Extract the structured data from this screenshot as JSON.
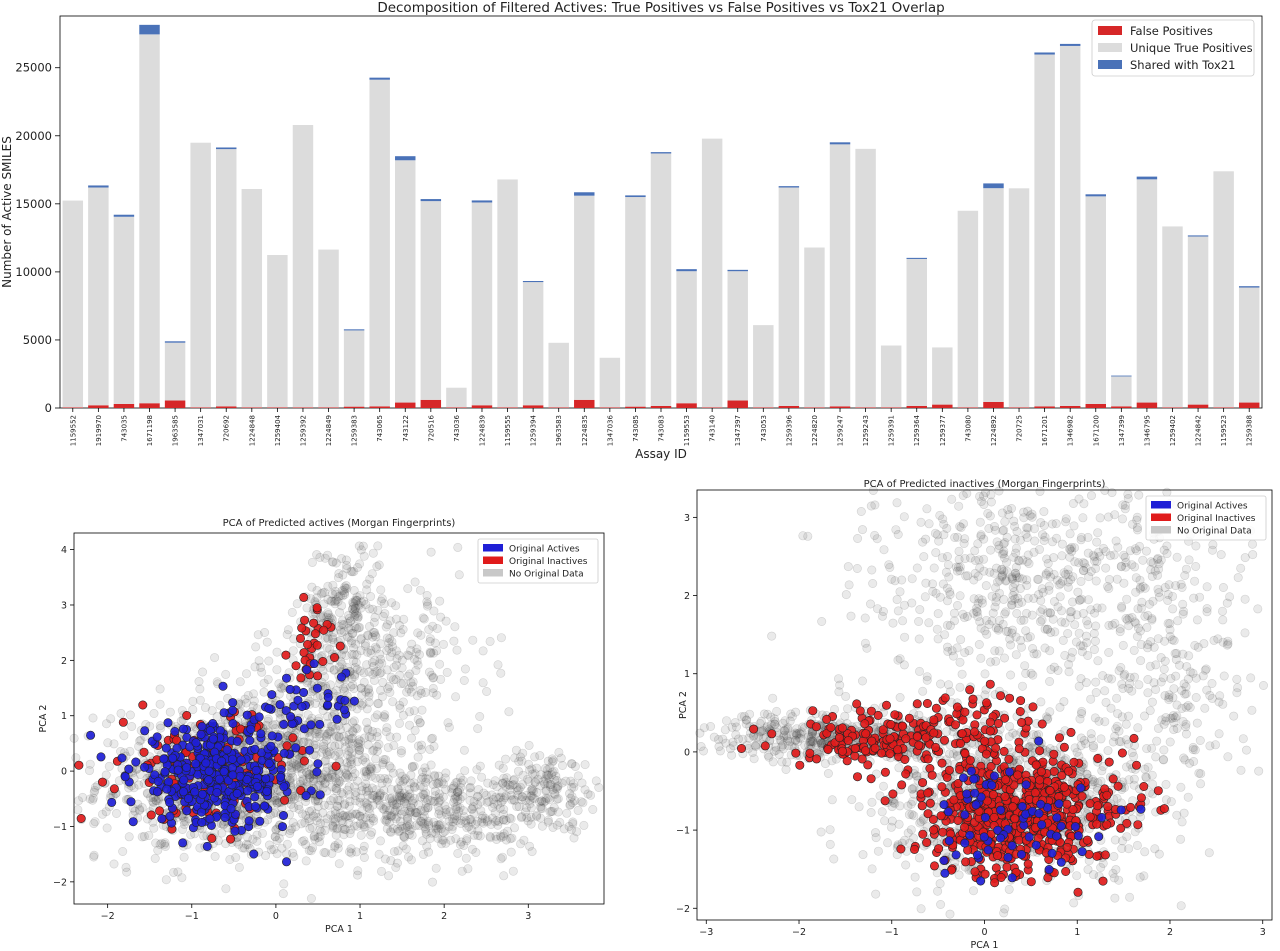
{
  "colors": {
    "false_positive": "#d62728",
    "unique_true_positive": "#dcdcdc",
    "shared_tox21": "#4a72b8",
    "original_actives": "#1f1fd6",
    "original_inactives": "#e01b1b",
    "no_original_data": "#c8c8c8",
    "background_points": "#555555"
  },
  "chart_data": [
    {
      "type": "bar",
      "stacked": true,
      "title": "Decomposition of Filtered Actives: True Positives vs False Positives vs Tox21 Overlap",
      "xlabel": "Assay ID",
      "ylabel": "Number of Active SMILES",
      "ylim": [
        0,
        28800
      ],
      "yticks": [
        0,
        5000,
        10000,
        15000,
        20000,
        25000
      ],
      "legend_position": "top-right",
      "categories": [
        "1159552",
        "1919970",
        "743035",
        "1671198",
        "1963585",
        "1347031",
        "720692",
        "1224848",
        "1259404",
        "1259392",
        "1224849",
        "1259383",
        "743065",
        "743122",
        "720516",
        "743036",
        "1224839",
        "1159555",
        "1259394",
        "1963583",
        "1224835",
        "1347036",
        "743085",
        "743083",
        "1159553",
        "743140",
        "1347397",
        "743053",
        "1259396",
        "1224820",
        "1259247",
        "1259243",
        "1259391",
        "1259364",
        "1259377",
        "743080",
        "1224892",
        "720725",
        "1671201",
        "1346982",
        "1671200",
        "1347399",
        "1346795",
        "1259402",
        "1224842",
        "1159523",
        "1259388"
      ],
      "series": [
        {
          "name": "False Positives",
          "values": [
            40,
            200,
            300,
            350,
            550,
            40,
            120,
            40,
            40,
            40,
            40,
            100,
            120,
            400,
            600,
            40,
            200,
            40,
            200,
            40,
            600,
            40,
            100,
            150,
            350,
            40,
            550,
            40,
            150,
            40,
            120,
            40,
            40,
            150,
            250,
            40,
            450,
            40,
            120,
            150,
            300,
            120,
            400,
            40,
            250,
            40,
            400
          ]
        },
        {
          "name": "Unique True Positives",
          "values": [
            15200,
            16000,
            13750,
            27100,
            4250,
            19450,
            18900,
            16050,
            11200,
            20750,
            11600,
            5600,
            24000,
            17800,
            14600,
            1450,
            14900,
            16750,
            9050,
            4750,
            15000,
            3650,
            15400,
            18550,
            9700,
            19750,
            9500,
            6050,
            16050,
            11750,
            19250,
            19000,
            4550,
            10800,
            4200,
            14450,
            15700,
            16100,
            25850,
            26450,
            15250,
            2200,
            16400,
            13300,
            12350,
            17350,
            8450
          ]
        },
        {
          "name": "Shared with Tox21",
          "values": [
            0,
            150,
            150,
            700,
            100,
            0,
            120,
            0,
            0,
            0,
            0,
            80,
            150,
            300,
            150,
            0,
            150,
            0,
            80,
            0,
            250,
            0,
            120,
            100,
            150,
            0,
            100,
            0,
            100,
            0,
            150,
            0,
            0,
            80,
            0,
            0,
            350,
            0,
            150,
            150,
            150,
            60,
            200,
            0,
            80,
            0,
            100
          ]
        }
      ]
    },
    {
      "type": "scatter",
      "title": "PCA of Predicted actives (Morgan Fingerprints)",
      "xlabel": "PCA 1",
      "ylabel": "PCA 2",
      "xlim": [
        -2.4,
        3.9
      ],
      "ylim": [
        -2.4,
        4.3
      ],
      "xticks": [
        -2,
        -1,
        0,
        1,
        2,
        3
      ],
      "yticks": [
        -2,
        -1,
        0,
        1,
        2,
        3,
        4
      ],
      "legend_position": "top-right",
      "legend": [
        "Original Actives",
        "Original Inactives",
        "No Original Data"
      ],
      "clusters": [
        {
          "series": "No Original Data",
          "cx": -0.6,
          "cy": -0.2,
          "sx": 0.75,
          "sy": 0.7,
          "n": 900
        },
        {
          "series": "No Original Data",
          "cx": 0.5,
          "cy": 0.6,
          "sx": 0.6,
          "sy": 0.9,
          "n": 500
        },
        {
          "series": "No Original Data",
          "cx": 0.8,
          "cy": 2.8,
          "sx": 0.25,
          "sy": 0.7,
          "n": 220
        },
        {
          "series": "No Original Data",
          "cx": 1.8,
          "cy": -0.7,
          "sx": 0.7,
          "sy": 0.45,
          "n": 500
        },
        {
          "series": "No Original Data",
          "cx": 3.2,
          "cy": -0.3,
          "sx": 0.3,
          "sy": 0.35,
          "n": 150
        },
        {
          "series": "No Original Data",
          "cx": 1.5,
          "cy": 2.0,
          "sx": 0.5,
          "sy": 0.7,
          "n": 180
        },
        {
          "series": "Original Inactives",
          "cx": -0.8,
          "cy": 0.0,
          "sx": 0.5,
          "sy": 0.5,
          "n": 140
        },
        {
          "series": "Original Inactives",
          "cx": 0.45,
          "cy": 2.4,
          "sx": 0.15,
          "sy": 0.35,
          "n": 30
        },
        {
          "series": "Original Actives",
          "cx": -0.7,
          "cy": -0.1,
          "sx": 0.5,
          "sy": 0.45,
          "n": 380
        },
        {
          "series": "Original Actives",
          "cx": 0.3,
          "cy": 1.2,
          "sx": 0.35,
          "sy": 0.35,
          "n": 40
        }
      ]
    },
    {
      "type": "scatter",
      "title": "PCA of Predicted inactives (Morgan Fingerprints)",
      "xlabel": "PCA 1",
      "ylabel": "PCA 2",
      "xlim": [
        -3.1,
        3.1
      ],
      "ylim": [
        -2.15,
        3.35
      ],
      "xticks": [
        -3,
        -2,
        -1,
        0,
        1,
        2,
        3
      ],
      "yticks": [
        -2,
        -1,
        0,
        1,
        2,
        3
      ],
      "legend_position": "top-right",
      "legend": [
        "Original Actives",
        "Original Inactives",
        "No Original Data"
      ],
      "clusters": [
        {
          "series": "No Original Data",
          "cx": -1.6,
          "cy": 0.2,
          "sx": 0.7,
          "sy": 0.15,
          "n": 450
        },
        {
          "series": "No Original Data",
          "cx": 0.3,
          "cy": -0.6,
          "sx": 0.75,
          "sy": 0.5,
          "n": 900
        },
        {
          "series": "No Original Data",
          "cx": 0.5,
          "cy": 2.2,
          "sx": 0.9,
          "sy": 0.75,
          "n": 600
        },
        {
          "series": "No Original Data",
          "cx": 2.0,
          "cy": 1.0,
          "sx": 0.45,
          "sy": 1.0,
          "n": 250
        },
        {
          "series": "Original Inactives",
          "cx": -1.2,
          "cy": 0.15,
          "sx": 0.45,
          "sy": 0.2,
          "n": 140
        },
        {
          "series": "Original Inactives",
          "cx": 0.35,
          "cy": -0.75,
          "sx": 0.55,
          "sy": 0.4,
          "n": 600
        },
        {
          "series": "Original Inactives",
          "cx": -0.1,
          "cy": 0.4,
          "sx": 0.3,
          "sy": 0.3,
          "n": 60
        },
        {
          "series": "Original Actives",
          "cx": 0.35,
          "cy": -0.85,
          "sx": 0.5,
          "sy": 0.35,
          "n": 70
        }
      ]
    }
  ]
}
